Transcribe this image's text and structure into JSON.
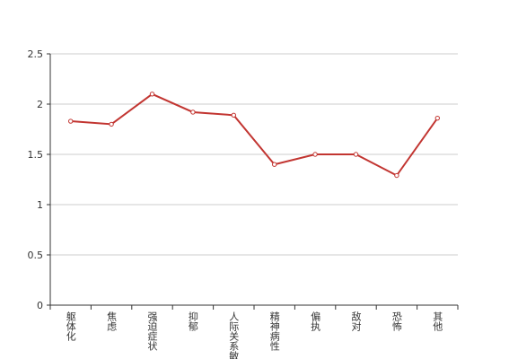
{
  "chart_data": {
    "type": "line",
    "categories": [
      "躯体化",
      "焦虑",
      "强迫症状",
      "抑郁",
      "人际关系敏感",
      "精神病性",
      "偏执",
      "敌对",
      "恐怖",
      "其他"
    ],
    "values": [
      1.83,
      1.8,
      2.1,
      1.92,
      1.89,
      1.4,
      1.5,
      1.5,
      1.29,
      1.86
    ],
    "color": "#c23531",
    "ylim": [
      0,
      2.5
    ],
    "yticks": [
      0,
      0.5,
      1,
      1.5,
      2,
      2.5
    ],
    "grid": true
  }
}
